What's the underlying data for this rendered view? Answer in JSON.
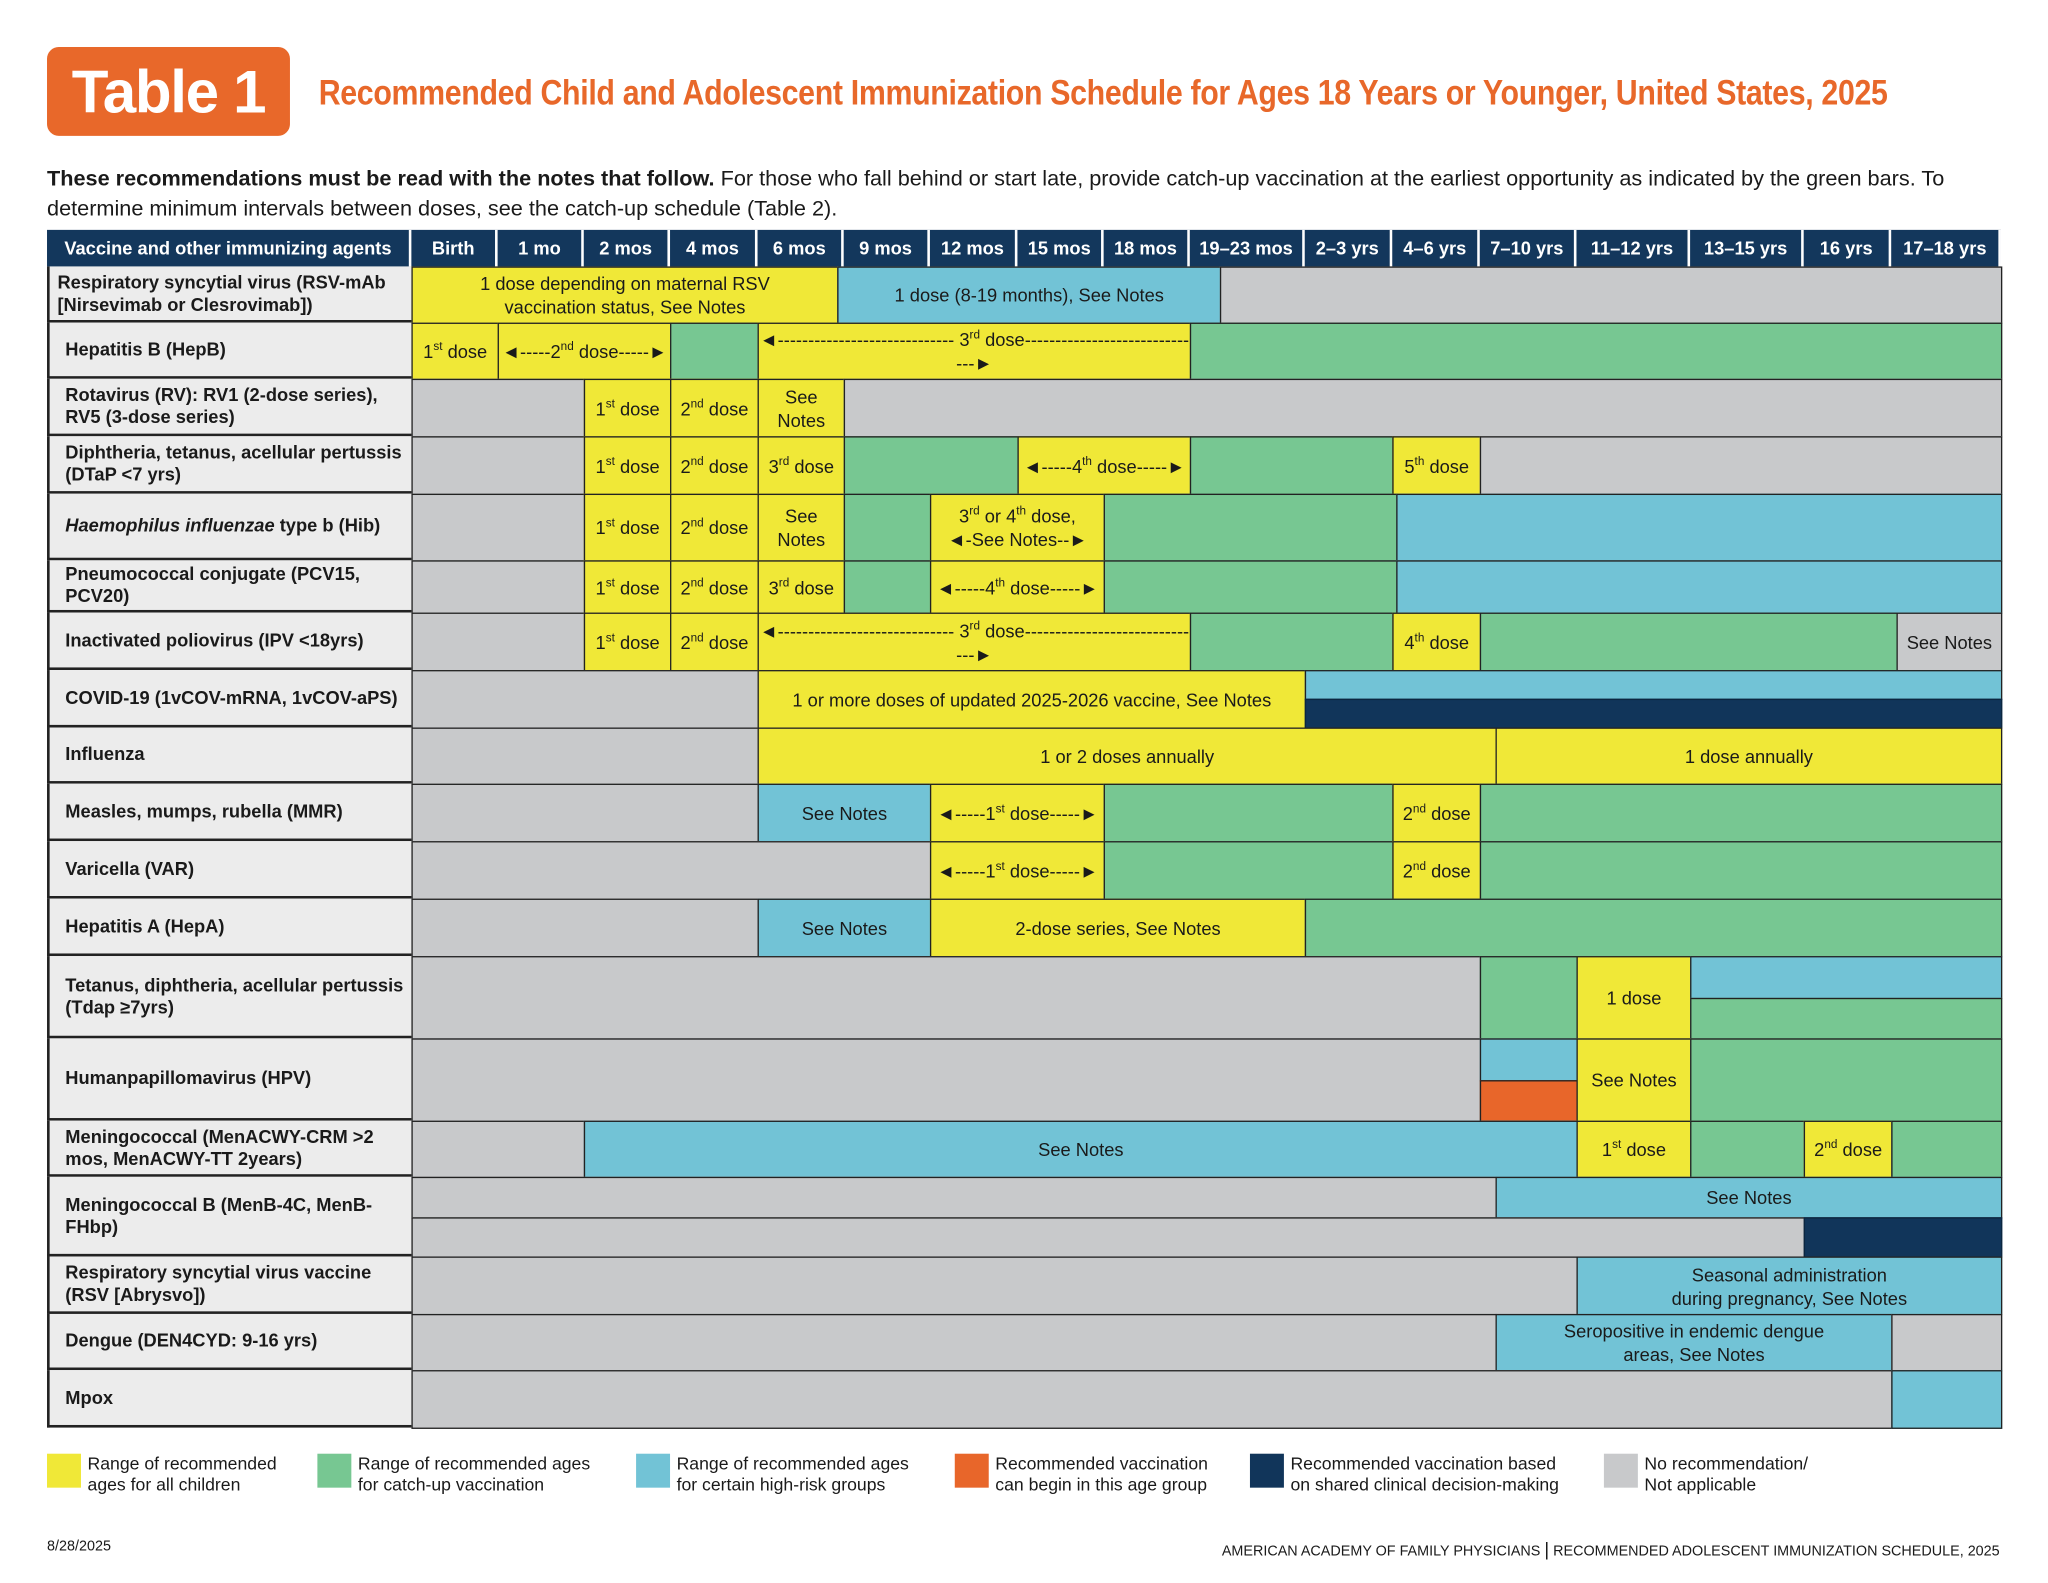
{
  "header": {
    "badge": "Table 1",
    "title": "Recommended Child and Adolescent Immunization Schedule for Ages 18 Years or Younger, United States, 2025",
    "intro_bold": "These recommendations must be read with the notes that follow.",
    "intro_rest": " For those who fall behind or start late, provide catch-up vaccination at the earliest opportunity as indicated by the green bars. To determine minimum intervals between doses, see the catch-up schedule (Table 2)."
  },
  "colors": {
    "Y": "#f0e837",
    "G": "#77c792",
    "B": "#72c3d6",
    "O": "#e8662a",
    "N": "#11355a",
    "X": "#c8c9cb",
    "header": "#13375c",
    "title": "#e8682a"
  },
  "columns": [
    "Vaccine and other immunizing agents",
    "Birth",
    "1 mo",
    "2 mos",
    "4 mos",
    "6 mos",
    "9 mos",
    "12 mos",
    "15 mos",
    "18 mos",
    "19–23 mos",
    "2–3 yrs",
    "4–6 yrs",
    "7–10 yrs",
    "11–12 yrs",
    "13–15 yrs",
    "16 yrs",
    "17–18 yrs"
  ],
  "rows": [
    {
      "label": "Respiratory syncytial virus (RSV-mAb [Nirsevimab or Clesrovimab])",
      "segments": [
        {
          "type": "Y",
          "text": "1 dose depending on maternal RSV\nvaccination status, See Notes"
        },
        {
          "type": "B",
          "text": "1 dose (8-19 months), See Notes"
        },
        {
          "type": "X",
          "text": ""
        }
      ]
    },
    {
      "label": "Hepatitis B (HepB)",
      "segments": [
        {
          "type": "Y",
          "text": "1st dose"
        },
        {
          "type": "Y",
          "text": "2nd dose",
          "arrows": "normal"
        },
        {
          "type": "G",
          "text": ""
        },
        {
          "type": "Y",
          "text": "3rd dose",
          "arrows": "long"
        },
        {
          "type": "G",
          "text": ""
        }
      ]
    },
    {
      "label": "Rotavirus (RV): RV1 (2-dose series), RV5 (3-dose series)",
      "segments": [
        {
          "type": "X",
          "text": ""
        },
        {
          "type": "Y",
          "text": "1st dose"
        },
        {
          "type": "Y",
          "text": "2nd dose"
        },
        {
          "type": "Y",
          "text": "See\nNotes"
        },
        {
          "type": "X",
          "text": ""
        }
      ]
    },
    {
      "label": "Diphtheria, tetanus, acellular pertussis (DTaP <7 yrs)",
      "segments": [
        {
          "type": "X",
          "text": ""
        },
        {
          "type": "Y",
          "text": "1st dose"
        },
        {
          "type": "Y",
          "text": "2nd dose"
        },
        {
          "type": "Y",
          "text": "3rd dose"
        },
        {
          "type": "G",
          "text": ""
        },
        {
          "type": "Y",
          "text": "4th dose",
          "arrows": "normal"
        },
        {
          "type": "G",
          "text": ""
        },
        {
          "type": "Y",
          "text": "5th dose"
        },
        {
          "type": "X",
          "text": ""
        }
      ]
    },
    {
      "label_italic": "Haemophilus influenzae",
      "label": " type b (Hib)",
      "segments": [
        {
          "type": "X",
          "text": ""
        },
        {
          "type": "Y",
          "text": "1st dose"
        },
        {
          "type": "Y",
          "text": "2nd dose"
        },
        {
          "type": "Y",
          "text": "See\nNotes"
        },
        {
          "type": "G",
          "text": ""
        },
        {
          "type": "Y",
          "text": "3rd or 4th dose,",
          "text2": "See Notes",
          "arrows": "short"
        },
        {
          "type": "G",
          "text": ""
        },
        {
          "type": "B",
          "text": ""
        }
      ]
    },
    {
      "label": "Pneumococcal conjugate (PCV15, PCV20)",
      "segments": [
        {
          "type": "X",
          "text": ""
        },
        {
          "type": "Y",
          "text": "1st dose"
        },
        {
          "type": "Y",
          "text": "2nd dose"
        },
        {
          "type": "Y",
          "text": "3rd dose"
        },
        {
          "type": "G",
          "text": ""
        },
        {
          "type": "Y",
          "text": "4th dose",
          "arrows": "normal"
        },
        {
          "type": "G",
          "text": ""
        },
        {
          "type": "B",
          "text": ""
        }
      ]
    },
    {
      "label": "Inactivated poliovirus (IPV <18yrs)",
      "segments": [
        {
          "type": "X",
          "text": ""
        },
        {
          "type": "Y",
          "text": "1st dose"
        },
        {
          "type": "Y",
          "text": "2nd dose"
        },
        {
          "type": "Y",
          "text": "3rd dose",
          "arrows": "long"
        },
        {
          "type": "G",
          "text": ""
        },
        {
          "type": "Y",
          "text": "4th dose"
        },
        {
          "type": "G",
          "text": ""
        },
        {
          "type": "X",
          "text": "See Notes"
        }
      ]
    },
    {
      "label": "COVID-19 (1vCOV-mRNA, 1vCOV-aPS)",
      "segments": [
        {
          "type": "X",
          "text": ""
        },
        {
          "type": "Y",
          "text": "1 or more doses of updated 2025-2026 vaccine, See Notes"
        },
        {
          "type": "B",
          "text": ""
        },
        {
          "type": "N",
          "text": ""
        }
      ]
    },
    {
      "label": "Influenza",
      "segments": [
        {
          "type": "X",
          "text": ""
        },
        {
          "type": "Y",
          "text": "1 or 2 doses annually"
        },
        {
          "type": "Y",
          "text": "1 dose annually"
        }
      ]
    },
    {
      "label": "Measles, mumps, rubella (MMR)",
      "segments": [
        {
          "type": "X",
          "text": ""
        },
        {
          "type": "B",
          "text": "See Notes"
        },
        {
          "type": "Y",
          "text": "1st dose",
          "arrows": "normal"
        },
        {
          "type": "G",
          "text": ""
        },
        {
          "type": "Y",
          "text": "2nd dose"
        },
        {
          "type": "G",
          "text": ""
        }
      ]
    },
    {
      "label": "Varicella (VAR)",
      "segments": [
        {
          "type": "X",
          "text": ""
        },
        {
          "type": "Y",
          "text": "1st dose",
          "arrows": "normal"
        },
        {
          "type": "G",
          "text": ""
        },
        {
          "type": "Y",
          "text": "2nd dose"
        },
        {
          "type": "G",
          "text": ""
        }
      ]
    },
    {
      "label": "Hepatitis A (HepA)",
      "segments": [
        {
          "type": "X",
          "text": ""
        },
        {
          "type": "B",
          "text": "See Notes"
        },
        {
          "type": "Y",
          "text": "2-dose series, See Notes"
        },
        {
          "type": "G",
          "text": ""
        }
      ]
    },
    {
      "label": "Tetanus, diphtheria, acellular pertussis (Tdap ≥7yrs)",
      "segments": [
        {
          "type": "X",
          "text": ""
        },
        {
          "type": "G",
          "text": ""
        },
        {
          "type": "Y",
          "text": "1 dose"
        },
        {
          "type": "B",
          "text": ""
        },
        {
          "type": "G",
          "text": ""
        }
      ]
    },
    {
      "label": "Humanpapillomavirus (HPV)",
      "segments": [
        {
          "type": "X",
          "text": ""
        },
        {
          "type": "B",
          "text": ""
        },
        {
          "type": "O",
          "text": ""
        },
        {
          "type": "Y",
          "text": "See Notes"
        },
        {
          "type": "G",
          "text": ""
        }
      ]
    },
    {
      "label": "Meningococcal (MenACWY-CRM >2 mos, MenACWY-TT 2years)",
      "segments": [
        {
          "type": "X",
          "text": ""
        },
        {
          "type": "B",
          "text": "See Notes"
        },
        {
          "type": "Y",
          "text": "1st dose"
        },
        {
          "type": "G",
          "text": ""
        },
        {
          "type": "Y",
          "text": "2nd dose"
        },
        {
          "type": "G",
          "text": ""
        }
      ]
    },
    {
      "label": "Meningococcal B (MenB-4C, MenB-FHbp)",
      "segments": [
        {
          "type": "X",
          "text": ""
        },
        {
          "type": "B",
          "text": "See Notes"
        },
        {
          "type": "X",
          "text": ""
        },
        {
          "type": "N",
          "text": ""
        }
      ]
    },
    {
      "label": "Respiratory syncytial virus vaccine (RSV [Abrysvo])",
      "segments": [
        {
          "type": "X",
          "text": ""
        },
        {
          "type": "B",
          "text": "Seasonal administration\nduring pregnancy, See Notes"
        }
      ]
    },
    {
      "label": "Dengue (DEN4CYD: 9-16 yrs)",
      "segments": [
        {
          "type": "X",
          "text": ""
        },
        {
          "type": "B",
          "text": "Seropositive in endemic dengue\nareas, See Notes"
        },
        {
          "type": "X",
          "text": ""
        }
      ]
    },
    {
      "label": "Mpox",
      "segments": [
        {
          "type": "X",
          "text": ""
        },
        {
          "type": "B",
          "text": ""
        }
      ]
    }
  ],
  "legend": [
    {
      "type": "Y",
      "text": "Range of recommended\nages for all children"
    },
    {
      "type": "G",
      "text": "Range of recommended ages\nfor catch-up vaccination"
    },
    {
      "type": "B",
      "text": "Range of recommended ages\nfor certain high-risk groups"
    },
    {
      "type": "O",
      "text": "Recommended vaccination\ncan begin in this age group"
    },
    {
      "type": "N",
      "text": "Recommended vaccination based\non shared clinical decision-making"
    },
    {
      "type": "X",
      "text": "No recommendation/\nNot applicable"
    }
  ],
  "footer": {
    "date": "8/28/2025",
    "org": "AMERICAN ACADEMY OF FAMILY PHYSICIANS",
    "separator": "|",
    "doc": "RECOMMENDED ADOLESCENT IMMUNIZATION SCHEDULE, 2025"
  }
}
